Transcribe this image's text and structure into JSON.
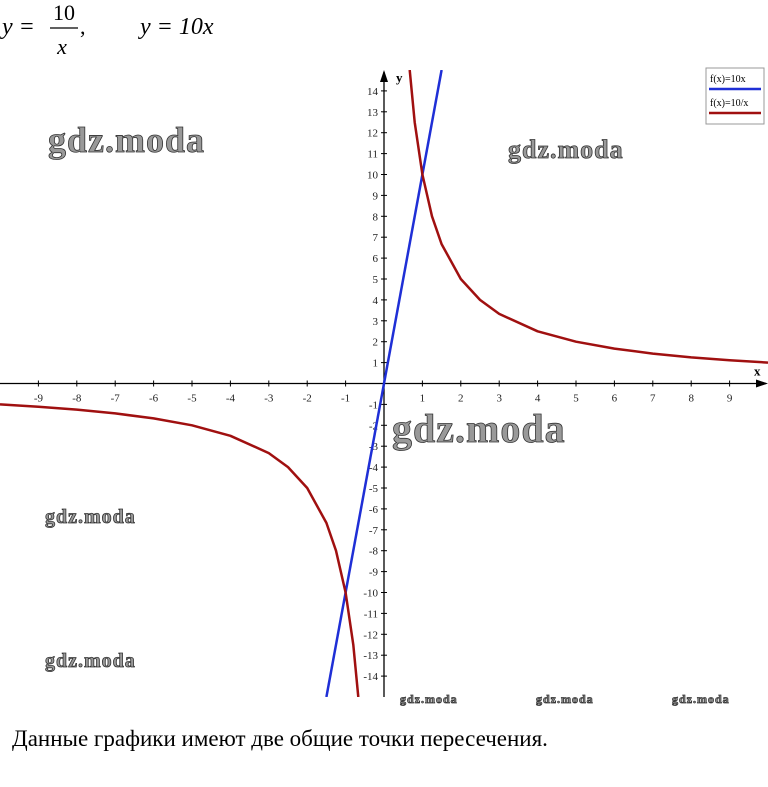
{
  "header": {
    "formula_left": "y =",
    "numerator": "10",
    "denominator": "x",
    "separator": ",",
    "formula_right": "y = 10x"
  },
  "graph": {
    "xlim": [
      -10,
      10
    ],
    "ylim": [
      -15,
      15
    ],
    "xticks": [
      -9,
      -8,
      -7,
      -6,
      -5,
      -4,
      -3,
      -2,
      -1,
      1,
      2,
      3,
      4,
      5,
      6,
      7,
      8,
      9
    ],
    "yticks": [
      -14,
      -13,
      -12,
      -11,
      -10,
      -9,
      -8,
      -7,
      -6,
      -5,
      -4,
      -3,
      -2,
      -1,
      1,
      2,
      3,
      4,
      5,
      6,
      7,
      8,
      9,
      10,
      11,
      12,
      13,
      14
    ],
    "xlabel": "x",
    "ylabel": "y",
    "series": [
      {
        "name": "f(x)=10x",
        "color": "#1f2fd6",
        "x": [
          -1.5,
          1.5
        ],
        "values": [
          -15,
          15
        ]
      },
      {
        "name": "f(x)=10/x",
        "color": "#a01010",
        "x": [
          -10,
          -9,
          -8,
          -7,
          -6,
          -5,
          -4,
          -3,
          -2.5,
          -2,
          -1.5,
          -1.25,
          -1,
          -0.8,
          -0.67,
          null,
          0.67,
          0.8,
          1,
          1.25,
          1.5,
          2,
          2.5,
          3,
          4,
          5,
          6,
          7,
          8,
          9,
          10
        ],
        "values": [
          -1,
          -1.11,
          -1.25,
          -1.43,
          -1.67,
          -2,
          -2.5,
          -3.33,
          -4,
          -5,
          -6.67,
          -8,
          -10,
          -12.5,
          -15,
          null,
          15,
          12.5,
          10,
          8,
          6.67,
          5,
          4,
          3.33,
          2.5,
          2,
          1.67,
          1.43,
          1.25,
          1.11,
          1
        ]
      }
    ]
  },
  "watermarks": [
    "gdz.moda",
    "gdz.moda",
    "gdz.moda",
    "gdz.moda",
    "gdz.moda",
    "gdz.moda",
    "gdz.moda",
    "gdz.moda"
  ],
  "footer": "Данные графики имеют две общие точки пересечения."
}
